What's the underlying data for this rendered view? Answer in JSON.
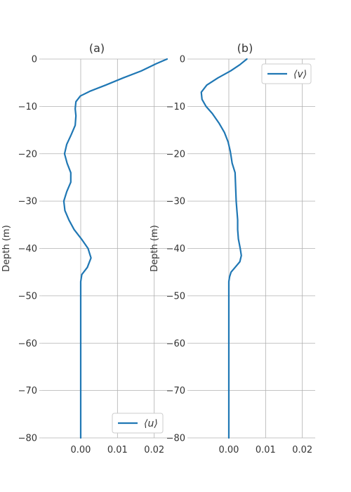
{
  "chart_data": [
    {
      "type": "line",
      "title": "(a)",
      "xlabel": "",
      "ylabel": "Depth (m)",
      "xlim": [
        -0.0105,
        0.0235
      ],
      "ylim": [
        -80,
        0
      ],
      "x_ticks": [
        0.0,
        0.01,
        0.02
      ],
      "x_tick_labels": [
        "0.00",
        "0.01",
        "0.02"
      ],
      "y_ticks": [
        0,
        -10,
        -20,
        -30,
        -40,
        -50,
        -60,
        -70,
        -80
      ],
      "y_tick_labels": [
        "0",
        "−10",
        "−20",
        "−30",
        "−40",
        "−50",
        "−60",
        "−70",
        "−80"
      ],
      "grid": true,
      "legend_position": "bottom-right",
      "color": "#1f77b4",
      "series": [
        {
          "name": "⟨u⟩",
          "points": [
            [
              0.0235,
              0
            ],
            [
              0.0205,
              -1
            ],
            [
              0.0165,
              -2.5
            ],
            [
              0.0115,
              -4
            ],
            [
              0.0068,
              -5.5
            ],
            [
              0.0025,
              -6.8
            ],
            [
              -0.0001,
              -7.8
            ],
            [
              -0.0013,
              -9
            ],
            [
              -0.0015,
              -10.5
            ],
            [
              -0.0013,
              -12
            ],
            [
              -0.0015,
              -14
            ],
            [
              -0.0026,
              -16
            ],
            [
              -0.0038,
              -18
            ],
            [
              -0.0044,
              -20
            ],
            [
              -0.0037,
              -22
            ],
            [
              -0.0027,
              -24
            ],
            [
              -0.0027,
              -26
            ],
            [
              -0.0038,
              -28
            ],
            [
              -0.0046,
              -30
            ],
            [
              -0.0043,
              -32
            ],
            [
              -0.0032,
              -34
            ],
            [
              -0.0018,
              -36
            ],
            [
              0.0002,
              -38
            ],
            [
              0.002,
              -40
            ],
            [
              0.0028,
              -42
            ],
            [
              0.0018,
              -44
            ],
            [
              0.0003,
              -45.5
            ],
            [
              0.0,
              -47
            ],
            [
              0.0,
              -55
            ],
            [
              0.0,
              -65
            ],
            [
              0.0,
              -75
            ],
            [
              0.0,
              -80
            ]
          ]
        }
      ]
    },
    {
      "type": "line",
      "title": "(b)",
      "xlabel": "",
      "ylabel": "Depth (m)",
      "xlim": [
        -0.0105,
        0.0235
      ],
      "ylim": [
        -80,
        0
      ],
      "x_ticks": [
        0.0,
        0.01,
        0.02
      ],
      "x_tick_labels": [
        "0.00",
        "0.01",
        "0.02"
      ],
      "y_ticks": [
        0,
        -10,
        -20,
        -30,
        -40,
        -50,
        -60,
        -70,
        -80
      ],
      "y_tick_labels": [
        "0",
        "−10",
        "−20",
        "−30",
        "−40",
        "−50",
        "−60",
        "−70",
        "−80"
      ],
      "grid": true,
      "legend_position": "top-right",
      "color": "#1f77b4",
      "series": [
        {
          "name": "⟨v⟩",
          "points": [
            [
              0.0049,
              0
            ],
            [
              0.003,
              -1.2
            ],
            [
              0.0005,
              -2.5
            ],
            [
              -0.003,
              -4
            ],
            [
              -0.006,
              -5.5
            ],
            [
              -0.0075,
              -7
            ],
            [
              -0.0073,
              -8.5
            ],
            [
              -0.0062,
              -10
            ],
            [
              -0.0045,
              -11.5
            ],
            [
              -0.0027,
              -13.5
            ],
            [
              -0.0012,
              -15.5
            ],
            [
              -0.0002,
              -17.5
            ],
            [
              0.0004,
              -19.5
            ],
            [
              0.0009,
              -22
            ],
            [
              0.0017,
              -24
            ],
            [
              0.0018,
              -26
            ],
            [
              0.0019,
              -28
            ],
            [
              0.002,
              -30
            ],
            [
              0.0022,
              -32
            ],
            [
              0.0024,
              -34
            ],
            [
              0.0024,
              -36
            ],
            [
              0.0026,
              -38
            ],
            [
              0.0031,
              -40
            ],
            [
              0.0034,
              -41.5
            ],
            [
              0.003,
              -42.8
            ],
            [
              0.0017,
              -44
            ],
            [
              0.0006,
              -45
            ],
            [
              0.0002,
              -46
            ],
            [
              0.0,
              -47
            ],
            [
              0.0,
              -55
            ],
            [
              0.0,
              -65
            ],
            [
              0.0,
              -75
            ],
            [
              0.0,
              -80
            ]
          ]
        }
      ]
    }
  ]
}
